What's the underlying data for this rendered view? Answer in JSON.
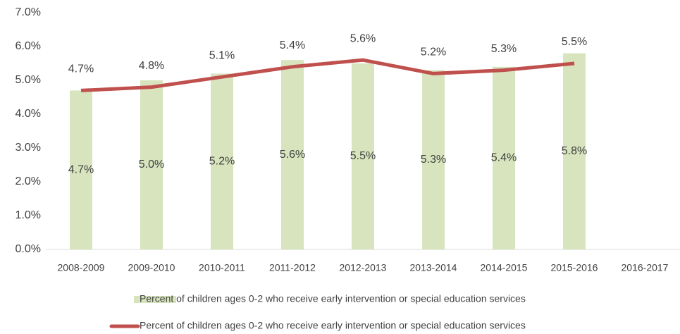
{
  "chart_data": {
    "type": "bar_line",
    "categories": [
      "2008-2009",
      "2009-2010",
      "2010-2011",
      "2011-2012",
      "2012-2013",
      "2013-2014",
      "2014-2015",
      "2015-2016",
      "2016-2017"
    ],
    "series": [
      {
        "name": "Percent of children ages 0-2 who receive early intervention or special education services",
        "type": "bar",
        "color": "#d7e4bd",
        "values": [
          4.7,
          5.0,
          5.2,
          5.6,
          5.5,
          5.3,
          5.4,
          5.8,
          null
        ],
        "value_labels": [
          "4.7%",
          "5.0%",
          "5.2%",
          "5.6%",
          "5.5%",
          "5.3%",
          "5.4%",
          "5.8%",
          null
        ]
      },
      {
        "name": "Percent of children ages 0-2 who receive early intervention or special education services",
        "type": "line",
        "color": "#c0504d",
        "values": [
          4.7,
          4.8,
          5.1,
          5.4,
          5.6,
          5.2,
          5.3,
          5.5,
          null
        ],
        "value_labels": [
          "4.7%",
          "4.8%",
          "5.1%",
          "5.4%",
          "5.6%",
          "5.2%",
          "5.3%",
          "5.5%",
          null
        ]
      }
    ],
    "ylim": [
      0,
      7
    ],
    "yticks": [
      {
        "value": 0,
        "label": "0.0%"
      },
      {
        "value": 1,
        "label": "1.0%"
      },
      {
        "value": 2,
        "label": "2.0%"
      },
      {
        "value": 3,
        "label": "3.0%"
      },
      {
        "value": 4,
        "label": "4.0%"
      },
      {
        "value": 5,
        "label": "5.0%"
      },
      {
        "value": 6,
        "label": "6.0%"
      },
      {
        "value": 7,
        "label": "7.0%"
      }
    ],
    "grid": false
  }
}
